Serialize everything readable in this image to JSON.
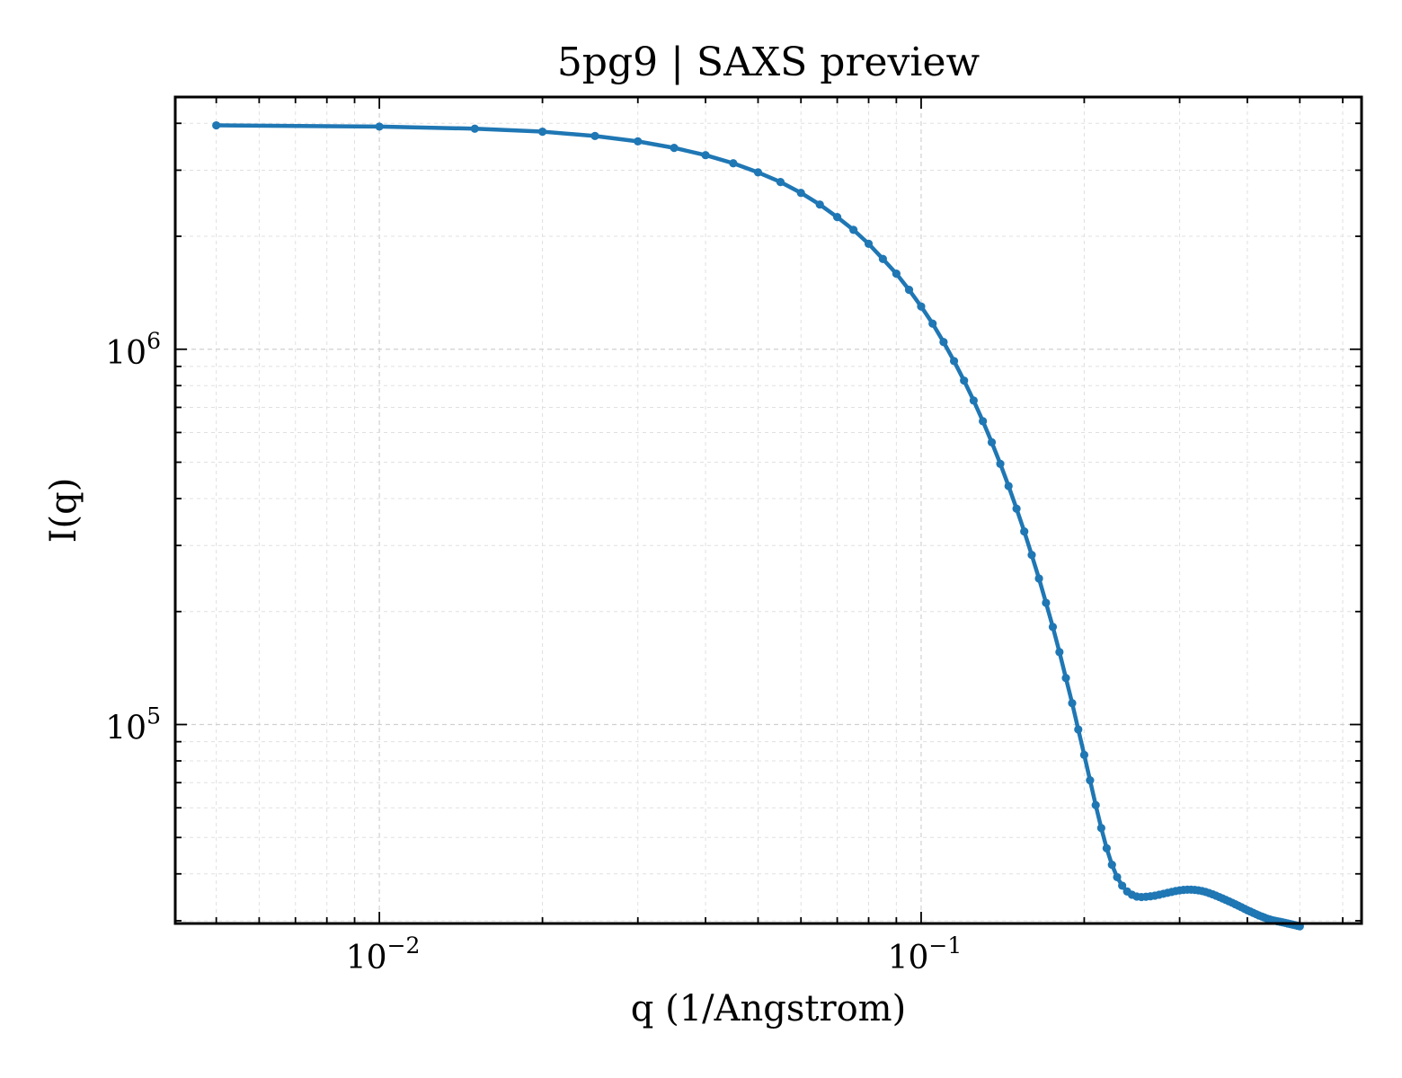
{
  "chart_data": {
    "type": "line",
    "title": "5pg9 | SAXS preview",
    "xlabel": "q (1/Angstrom)",
    "ylabel": "I(q)",
    "xscale": "log",
    "yscale": "log",
    "xlim": [
      0.0042,
      0.65
    ],
    "ylim": [
      29500,
      4700000
    ],
    "grid": "on (major and minor, dashed)",
    "legend": "none",
    "x_ticks": [
      {
        "base": "10",
        "exp": "−2",
        "value": 0.01
      },
      {
        "base": "10",
        "exp": "−1",
        "value": 0.1
      }
    ],
    "y_ticks": [
      {
        "base": "10",
        "exp": "5",
        "value": 100000
      },
      {
        "base": "10",
        "exp": "6",
        "value": 1000000
      }
    ],
    "colors": {
      "series": "#1f77b4"
    },
    "series": [
      {
        "marker": "o",
        "x": [
          0.005,
          0.01,
          0.015,
          0.02,
          0.025,
          0.03,
          0.035,
          0.04,
          0.045,
          0.05,
          0.055,
          0.06,
          0.065,
          0.07,
          0.075,
          0.08,
          0.085,
          0.09,
          0.095,
          0.1,
          0.105,
          0.11,
          0.115,
          0.12,
          0.125,
          0.13,
          0.135,
          0.14,
          0.145,
          0.15,
          0.155,
          0.16,
          0.165,
          0.17,
          0.175,
          0.18,
          0.185,
          0.19,
          0.195,
          0.2,
          0.205,
          0.21,
          0.215,
          0.22,
          0.225,
          0.23,
          0.235,
          0.24,
          0.245,
          0.25,
          0.255,
          0.26,
          0.265,
          0.27,
          0.275,
          0.28,
          0.285,
          0.29,
          0.295,
          0.3,
          0.305,
          0.31,
          0.315,
          0.32,
          0.325,
          0.33,
          0.335,
          0.34,
          0.345,
          0.35,
          0.355,
          0.36,
          0.365,
          0.37,
          0.375,
          0.38,
          0.385,
          0.39,
          0.395,
          0.4,
          0.405,
          0.41,
          0.415,
          0.42,
          0.425,
          0.43,
          0.435,
          0.44,
          0.445,
          0.45,
          0.455,
          0.46,
          0.465,
          0.47,
          0.475,
          0.48,
          0.485,
          0.49,
          0.495,
          0.5
        ],
        "y": [
          3950000,
          3920000,
          3870000,
          3800000,
          3700000,
          3580000,
          3440000,
          3290000,
          3130000,
          2960000,
          2790000,
          2610000,
          2430000,
          2250000,
          2080000,
          1910000,
          1740000,
          1590000,
          1440000,
          1300000,
          1170000,
          1045000,
          930000,
          825000,
          730000,
          643000,
          565000,
          495000,
          432000,
          376000,
          327000,
          283000,
          245000,
          211000,
          182000,
          156000,
          133000,
          114000,
          97000,
          83000,
          71000,
          61000,
          53000,
          46800,
          42300,
          39200,
          37200,
          35900,
          35200,
          34800,
          34700,
          34750,
          34850,
          35000,
          35200,
          35400,
          35600,
          35800,
          36000,
          36150,
          36250,
          36300,
          36300,
          36250,
          36150,
          36000,
          35800,
          35550,
          35300,
          35000,
          34700,
          34400,
          34100,
          33800,
          33500,
          33200,
          32900,
          32600,
          32300,
          32000,
          31750,
          31500,
          31250,
          31000,
          30800,
          30600,
          30400,
          30250,
          30100,
          30000,
          29900,
          29800,
          29700,
          29600,
          29500,
          29400,
          29300,
          29200,
          29100,
          29000
        ]
      }
    ]
  }
}
